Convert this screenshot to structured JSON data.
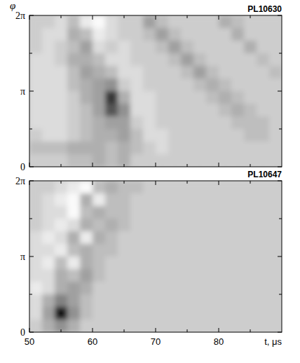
{
  "chart_data": [
    {
      "type": "heatmap",
      "title": "PL10630",
      "y_label": "φ",
      "xlim": [
        50,
        90
      ],
      "xticks": [
        50,
        60,
        70,
        80
      ],
      "ylim": [
        0,
        6.2832
      ],
      "yticks": [
        0,
        {
          "value": 3.1416,
          "label": "π"
        },
        {
          "value": 6.2832,
          "label": "2π"
        }
      ],
      "tick_labels": "y",
      "zlim": [
        -3,
        12
      ],
      "z": [
        [
          0,
          0,
          -1,
          1,
          -2,
          -3,
          -1,
          0,
          0,
          3,
          1,
          0,
          0,
          0,
          0,
          2,
          1,
          0,
          0,
          0
        ],
        [
          0,
          -1,
          -1,
          2,
          1,
          -2,
          -1,
          0,
          0,
          1,
          3,
          1,
          0,
          0,
          0,
          0,
          2,
          0,
          0,
          0
        ],
        [
          0,
          -1,
          0,
          1,
          3,
          -1,
          0,
          -1,
          0,
          0,
          1,
          3,
          1,
          0,
          0,
          0,
          0,
          2,
          0,
          0
        ],
        [
          -1,
          -1,
          0,
          2,
          2,
          1,
          -1,
          -1,
          0,
          0,
          0,
          1,
          3,
          1,
          0,
          0,
          0,
          0,
          1,
          0
        ],
        [
          -1,
          -1,
          -1,
          1,
          3,
          2,
          1,
          -1,
          -1,
          0,
          0,
          0,
          1,
          3,
          1,
          0,
          0,
          0,
          0,
          1
        ],
        [
          -1,
          -1,
          -1,
          1,
          2,
          3,
          4,
          0,
          -1,
          0,
          0,
          0,
          0,
          1,
          2,
          1,
          0,
          0,
          0,
          0
        ],
        [
          -1,
          -1,
          -1,
          0,
          2,
          3,
          10,
          2,
          -1,
          -1,
          0,
          0,
          0,
          0,
          1,
          2,
          1,
          0,
          0,
          0
        ],
        [
          -1,
          -1,
          -1,
          0,
          1,
          3,
          8,
          4,
          -1,
          -1,
          0,
          0,
          0,
          0,
          0,
          1,
          2,
          1,
          0,
          0
        ],
        [
          -1,
          -1,
          -1,
          0,
          1,
          2,
          3,
          3,
          0,
          -1,
          0,
          0,
          0,
          0,
          0,
          0,
          1,
          1,
          1,
          0
        ],
        [
          0,
          -1,
          -1,
          0,
          1,
          2,
          2,
          3,
          1,
          -1,
          -1,
          0,
          0,
          0,
          0,
          0,
          0,
          1,
          1,
          0
        ],
        [
          1,
          1,
          1,
          2,
          2,
          2,
          1,
          2,
          1,
          0,
          -1,
          0,
          0,
          0,
          0,
          0,
          0,
          0,
          0,
          0
        ],
        [
          0,
          0,
          0,
          1,
          1,
          2,
          1,
          2,
          0,
          0,
          0,
          0,
          0,
          0,
          0,
          0,
          0,
          0,
          0,
          0
        ]
      ]
    },
    {
      "type": "heatmap",
      "title": "PL10647",
      "x_label": "t, μs",
      "xlim": [
        50,
        90
      ],
      "xticks": [
        50,
        60,
        70,
        80
      ],
      "ylim": [
        0,
        6.2832
      ],
      "yticks": [
        0,
        {
          "value": 3.1416,
          "label": "π"
        },
        {
          "value": 6.2832,
          "label": "2π"
        }
      ],
      "tick_labels": true,
      "zlim": [
        -3,
        12
      ],
      "z": [
        [
          0,
          0,
          -1,
          -2,
          -3,
          1,
          2,
          1,
          1,
          0,
          0,
          0,
          0,
          0,
          0,
          0,
          0,
          0,
          0,
          0
        ],
        [
          0,
          -1,
          -2,
          -3,
          2,
          -2,
          1,
          1,
          0,
          0,
          0,
          0,
          0,
          0,
          0,
          0,
          0,
          0,
          0,
          0
        ],
        [
          0,
          -1,
          -1,
          -3,
          1,
          2,
          1,
          1,
          0,
          0,
          0,
          0,
          0,
          0,
          0,
          0,
          0,
          0,
          0,
          0
        ],
        [
          0,
          -1,
          -2,
          -1,
          2,
          1,
          2,
          1,
          0,
          0,
          0,
          0,
          0,
          0,
          0,
          0,
          0,
          0,
          0,
          0
        ],
        [
          -1,
          -2,
          -1,
          2,
          -2,
          2,
          1,
          0,
          0,
          0,
          0,
          0,
          0,
          0,
          0,
          0,
          0,
          0,
          0,
          0
        ],
        [
          -1,
          -1,
          -2,
          1,
          2,
          1,
          1,
          0,
          0,
          0,
          0,
          0,
          0,
          0,
          0,
          0,
          0,
          0,
          0,
          0
        ],
        [
          -1,
          -2,
          1,
          -2,
          2,
          1,
          0,
          0,
          0,
          0,
          0,
          0,
          0,
          0,
          0,
          0,
          0,
          0,
          0,
          0
        ],
        [
          -1,
          -1,
          2,
          1,
          3,
          1,
          0,
          0,
          0,
          0,
          0,
          0,
          0,
          0,
          0,
          0,
          0,
          0,
          0,
          0
        ],
        [
          -2,
          -1,
          2,
          3,
          2,
          0,
          0,
          0,
          0,
          0,
          0,
          0,
          0,
          0,
          0,
          0,
          0,
          0,
          0,
          0
        ],
        [
          -1,
          2,
          5,
          3,
          1,
          0,
          0,
          0,
          0,
          0,
          0,
          0,
          0,
          0,
          0,
          0,
          0,
          0,
          0,
          0
        ],
        [
          -1,
          3,
          12,
          4,
          1,
          0,
          0,
          0,
          0,
          0,
          0,
          0,
          0,
          0,
          0,
          0,
          0,
          0,
          0,
          0
        ],
        [
          0,
          2,
          4,
          2,
          0,
          0,
          0,
          0,
          0,
          0,
          0,
          0,
          0,
          0,
          0,
          0,
          0,
          0,
          0,
          0
        ]
      ]
    }
  ]
}
